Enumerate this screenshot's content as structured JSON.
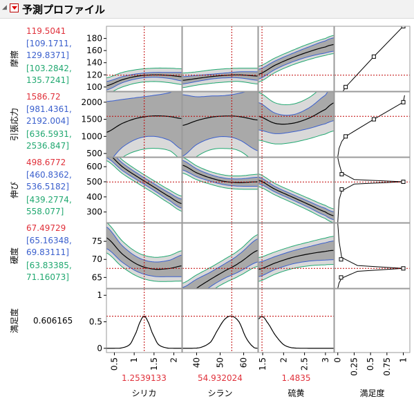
{
  "header": {
    "title": "予測プロファイル"
  },
  "colors": {
    "current": "#e0303a",
    "ci": "#3a5fcd",
    "pi": "#20a870",
    "band_dark": "#a9a9a9",
    "band_light": "#d9d9d9",
    "curve": "#000000",
    "refline": "#c00000"
  },
  "chart_data": {
    "type": "line",
    "factors": [
      {
        "name": "シリカ",
        "current": 1.2539133,
        "current_label": "1.2539133",
        "range": [
          0.3,
          2.2
        ],
        "ticks": [
          0.5,
          1,
          1.5,
          2
        ],
        "tick_labels": [
          "0.5",
          "1",
          "1.5",
          "2"
        ]
      },
      {
        "name": "シラン",
        "current": 54.932024,
        "current_label": "54.932024",
        "range": [
          34,
          66
        ],
        "ticks": [
          40,
          50,
          60
        ],
        "tick_labels": [
          "40",
          "50",
          "60"
        ]
      },
      {
        "name": "硫黄",
        "current": 1.4835,
        "current_label": "1.4835",
        "range": [
          1.4,
          3.2
        ],
        "ticks": [
          1.5,
          2,
          2.5,
          3
        ],
        "tick_labels": [
          "1.5",
          "2",
          "2.5",
          "3"
        ]
      },
      {
        "name": "満足度",
        "range": [
          -0.05,
          1.1
        ],
        "ticks": [
          0,
          0.25,
          0.5,
          0.75,
          1
        ],
        "tick_labels": [
          "0",
          "0.25",
          "0.5",
          "0.75",
          "1"
        ]
      }
    ],
    "responses": [
      {
        "name": "摩擦",
        "value": "119.5041",
        "ci": [
          "[109.1711,",
          "129.8371]"
        ],
        "pi": [
          "[103.2842,",
          "135.7241]"
        ],
        "current": 119.5041,
        "ylim": [
          93,
          200
        ],
        "yticks": [
          100,
          120,
          140,
          160,
          180
        ],
        "curves": [
          {
            "x": [
              0.3,
              0.7,
              1.1,
              1.5,
              1.9,
              2.2
            ],
            "y": [
              102,
              112,
              118,
              120,
              119,
              117
            ],
            "ci": [
              7,
              5,
              4,
              4,
              5,
              7
            ],
            "pi": [
              13,
              12,
              11,
              11,
              12,
              13
            ]
          },
          {
            "x": [
              34,
              40,
              46,
              52,
              58,
              66
            ],
            "y": [
              111,
              114,
              117,
              119,
              120,
              118
            ],
            "ci": [
              6,
              5,
              4,
              4,
              5,
              7
            ],
            "pi": [
              12,
              11,
              11,
              11,
              11,
              13
            ]
          },
          {
            "x": [
              1.4,
              1.8,
              2.2,
              2.6,
              3.0,
              3.2
            ],
            "y": [
              121,
              136,
              148,
              158,
              166,
              170
            ],
            "ci": [
              8,
              7,
              7,
              8,
              10,
              11
            ],
            "pi": [
              13,
              12,
              12,
              13,
              14,
              15
            ]
          }
        ],
        "desirability": {
          "x": [
            0.08,
            0.12,
            0.55,
            1.0
          ],
          "y": [
            93,
            100,
            150,
            200
          ],
          "markers": [
            [
              0.12,
              100
            ],
            [
              0.55,
              150
            ],
            [
              1.0,
              200
            ]
          ]
        }
      },
      {
        "name": "引張応力",
        "value": "1586.72",
        "ci": [
          "[981.4361,",
          "2192.004]"
        ],
        "pi": [
          "[636.5931,",
          "2536.847]"
        ],
        "current": 1586.72,
        "ylim": [
          400,
          2300
        ],
        "yticks": [
          500,
          1000,
          1500,
          2000
        ],
        "curves": [
          {
            "x": [
              0.3,
              0.7,
              1.1,
              1.5,
              1.9,
              2.2
            ],
            "y": [
              1120,
              1380,
              1540,
              1600,
              1580,
              1520
            ],
            "ci": [
              900,
              700,
              600,
              600,
              700,
              900
            ],
            "pi": [
              1200,
              1000,
              950,
              950,
              1000,
              1200
            ]
          },
          {
            "x": [
              34,
              40,
              46,
              52,
              58,
              66
            ],
            "y": [
              1320,
              1460,
              1560,
              1595,
              1580,
              1480
            ],
            "ci": [
              900,
              700,
              620,
              600,
              680,
              900
            ],
            "pi": [
              1250,
              1050,
              950,
              950,
              1000,
              1250
            ]
          },
          {
            "x": [
              1.4,
              1.8,
              2.2,
              2.6,
              3.0,
              3.2
            ],
            "y": [
              1590,
              1380,
              1380,
              1530,
              1790,
              1980
            ],
            "ci": [
              400,
              300,
              250,
              300,
              420,
              520
            ],
            "pi": [
              700,
              600,
              560,
              600,
              720,
              820
            ]
          }
        ],
        "desirability": {
          "x": [
            0.0,
            0.02,
            0.06,
            0.12,
            0.55,
            1.0,
            1.02
          ],
          "y": [
            400,
            650,
            850,
            1000,
            1500,
            2000,
            2200
          ],
          "markers": [
            [
              0.12,
              1000
            ],
            [
              0.55,
              1500
            ],
            [
              1.0,
              2000
            ]
          ]
        }
      },
      {
        "name": "伸び",
        "value": "498.6772",
        "ci": [
          "[460.8362,",
          "536.5182]"
        ],
        "pi": [
          "[439.2774,",
          "558.077]"
        ],
        "current": 498.6772,
        "ylim": [
          230,
          660
        ],
        "yticks": [
          300,
          400,
          500,
          600
        ],
        "curves": [
          {
            "x": [
              0.3,
              0.7,
              1.1,
              1.5,
              1.9,
              2.2
            ],
            "y": [
              690,
              600,
              530,
              465,
              400,
              355
            ],
            "ci": [
              30,
              25,
              22,
              22,
              25,
              30
            ],
            "pi": [
              50,
              45,
              42,
              42,
              45,
              50
            ]
          },
          {
            "x": [
              34,
              40,
              46,
              52,
              58,
              66
            ],
            "y": [
              610,
              560,
              525,
              502,
              495,
              500
            ],
            "ci": [
              32,
              26,
              22,
              22,
              24,
              30
            ],
            "pi": [
              52,
              46,
              42,
              42,
              44,
              50
            ]
          },
          {
            "x": [
              1.4,
              1.8,
              2.2,
              2.6,
              3.0,
              3.2
            ],
            "y": [
              510,
              450,
              400,
              350,
              300,
              275
            ],
            "ci": [
              22,
              18,
              18,
              20,
              24,
              26
            ],
            "pi": [
              42,
              38,
              38,
              40,
              44,
              46
            ]
          }
        ],
        "desirability": {
          "x": [
            0.0,
            0.02,
            0.06,
            0.25,
            1.0,
            0.25,
            0.06,
            0.02,
            0.0
          ],
          "y": [
            660,
            620,
            560,
            515,
            500,
            485,
            440,
            380,
            230
          ],
          "markers": [
            [
              0.06,
              550
            ],
            [
              1.0,
              500
            ],
            [
              0.06,
              450
            ]
          ]
        }
      },
      {
        "name": "硬度",
        "value": "67.49729",
        "ci": [
          "[65.16348,",
          "69.83111]"
        ],
        "pi": [
          "[63.83385,",
          "71.16073]"
        ],
        "current": 67.49729,
        "ylim": [
          62,
          80
        ],
        "yticks": [
          65,
          70,
          75
        ],
        "curves": [
          {
            "x": [
              0.3,
              0.7,
              1.1,
              1.5,
              1.9,
              2.2
            ],
            "y": [
              76,
              71.5,
              68.5,
              67.3,
              67.5,
              68.2
            ],
            "ci": [
              3,
              2.3,
              2,
              2,
              2.3,
              3
            ],
            "pi": [
              4.2,
              3.6,
              3.3,
              3.3,
              3.6,
              4.2
            ]
          },
          {
            "x": [
              34,
              40,
              46,
              52,
              58,
              66
            ],
            "y": [
              59,
              62,
              64.5,
              66.8,
              69,
              72.5
            ],
            "ci": [
              3.2,
              2.5,
              2,
              2,
              2.4,
              3.2
            ],
            "pi": [
              4.4,
              3.7,
              3.3,
              3.3,
              3.6,
              4.4
            ]
          },
          {
            "x": [
              1.4,
              1.8,
              2.2,
              2.6,
              3.0,
              3.2
            ],
            "y": [
              67.2,
              69,
              70.5,
              71.5,
              72.2,
              72.5
            ],
            "ci": [
              2,
              1.8,
              1.8,
              2,
              2.4,
              2.6
            ],
            "pi": [
              3.3,
              3.1,
              3.1,
              3.3,
              3.7,
              3.9
            ]
          }
        ],
        "desirability": {
          "x": [
            0.0,
            0.02,
            0.06,
            0.3,
            1.0,
            0.3,
            0.06,
            0.02,
            0.0
          ],
          "y": [
            80,
            75,
            70.5,
            68.3,
            67.5,
            66.7,
            64.8,
            63.5,
            62
          ],
          "markers": [
            [
              0.05,
              70
            ],
            [
              1.0,
              67.5
            ],
            [
              0.05,
              65
            ]
          ]
        }
      }
    ],
    "desirability": {
      "name": "満足度",
      "value": "0.606165",
      "current": 0.606165,
      "ylim": [
        -0.08,
        1.12
      ],
      "yticks": [
        0,
        0.5,
        1
      ],
      "ytick_labels": [
        "0",
        "0.5",
        "1"
      ],
      "curves": [
        {
          "x": [
            0.3,
            0.5,
            0.7,
            0.9,
            1.05,
            1.15,
            1.25,
            1.35,
            1.45,
            1.6,
            1.8,
            2.0,
            2.2
          ],
          "y": [
            0,
            0,
            0.01,
            0.08,
            0.3,
            0.5,
            0.606,
            0.5,
            0.3,
            0.08,
            0.01,
            0,
            0
          ]
        },
        {
          "x": [
            34,
            38,
            42,
            46,
            49,
            52,
            54.9,
            58,
            61,
            64,
            66
          ],
          "y": [
            0,
            0,
            0.02,
            0.12,
            0.35,
            0.55,
            0.606,
            0.5,
            0.2,
            0.03,
            0
          ]
        },
        {
          "x": [
            1.4,
            1.48,
            1.6,
            1.8,
            2.0,
            2.2,
            2.6,
            3.2
          ],
          "y": [
            0.55,
            0.606,
            0.5,
            0.25,
            0.07,
            0.01,
            0,
            0
          ]
        }
      ]
    }
  }
}
